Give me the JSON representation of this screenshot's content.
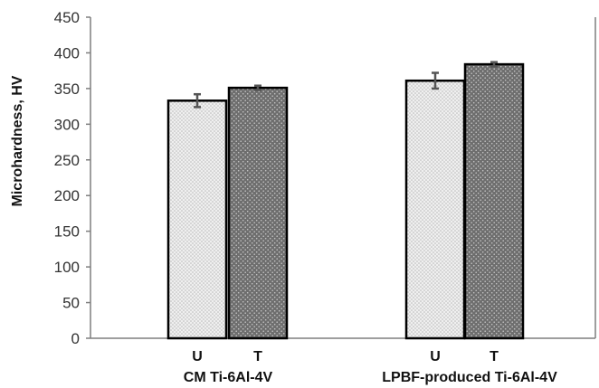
{
  "chart_data": {
    "type": "bar",
    "ylabel": "Microhardness, HV",
    "ylim": [
      0,
      450
    ],
    "yticks": [
      0,
      50,
      100,
      150,
      200,
      250,
      300,
      350,
      400,
      450
    ],
    "grid": false,
    "groups": [
      {
        "name": "CM Ti-6Al-4V",
        "bars": [
          {
            "label": "U",
            "value": 333,
            "error": 9
          },
          {
            "label": "T",
            "value": 351,
            "error": 3
          }
        ]
      },
      {
        "name": "LPBF-produced Ti-6Al-4V",
        "bars": [
          {
            "label": "U",
            "value": 361,
            "error": 11
          },
          {
            "label": "T",
            "value": 384,
            "error": 3
          }
        ]
      }
    ],
    "colors": {
      "U_fill": "#efefef",
      "U_dot": "#b8b8b8",
      "T_fill": "#6e6e6e",
      "T_dot": "#c4c4c4",
      "bar_stroke": "#000000",
      "axis": "#7f7f7f",
      "error_bar": "#555555"
    }
  }
}
